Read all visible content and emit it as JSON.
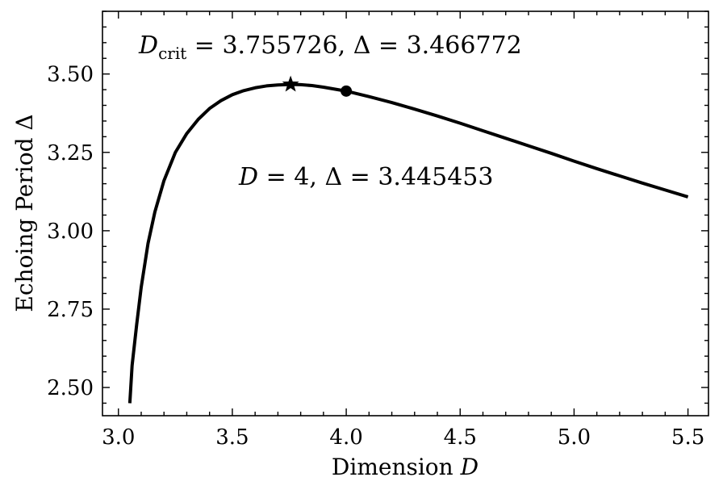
{
  "chart_data": {
    "type": "line",
    "xlabel": {
      "text": "Dimension ",
      "var": "D"
    },
    "ylabel": "Echoing Period Δ",
    "xlim": [
      2.93,
      5.59
    ],
    "ylim": [
      2.41,
      3.7
    ],
    "xticks": [
      3.0,
      3.5,
      4.0,
      4.5,
      5.0,
      5.5
    ],
    "xtick_labels": [
      "3.0",
      "3.5",
      "4.0",
      "4.5",
      "5.0",
      "5.5"
    ],
    "yticks": [
      2.5,
      2.75,
      3.0,
      3.25,
      3.5
    ],
    "ytick_labels": [
      "2.50",
      "2.75",
      "3.00",
      "3.25",
      "3.50"
    ],
    "grid": false,
    "series": [
      {
        "color": "#000000",
        "x": [
          3.05,
          3.06,
          3.08,
          3.1,
          3.13,
          3.16,
          3.2,
          3.25,
          3.3,
          3.35,
          3.4,
          3.45,
          3.5,
          3.55,
          3.6,
          3.65,
          3.7,
          3.7557,
          3.8,
          3.85,
          3.9,
          4.0,
          4.1,
          4.2,
          4.3,
          4.4,
          4.5,
          4.6,
          4.7,
          4.8,
          4.9,
          5.0,
          5.1,
          5.2,
          5.3,
          5.4,
          5.5
        ],
        "y": [
          2.45,
          2.57,
          2.7,
          2.82,
          2.96,
          3.06,
          3.16,
          3.25,
          3.31,
          3.355,
          3.39,
          3.415,
          3.434,
          3.447,
          3.456,
          3.462,
          3.465,
          3.466772,
          3.466,
          3.463,
          3.458,
          3.445453,
          3.428,
          3.409,
          3.388,
          3.366,
          3.343,
          3.319,
          3.295,
          3.271,
          3.247,
          3.222,
          3.198,
          3.175,
          3.152,
          3.13,
          3.108
        ]
      }
    ],
    "markers": [
      {
        "shape": "star",
        "x": 3.755726,
        "y": 3.466772
      },
      {
        "shape": "circle",
        "x": 4.0,
        "y": 3.445453
      }
    ],
    "annotations": {
      "crit": {
        "d": "D",
        "sub": "crit",
        "eq1": " = 3.755726, ",
        "delta": "Δ",
        "eq2": " = 3.466772"
      },
      "four": {
        "d": "D",
        "eq1": " = 4, ",
        "delta": "Δ",
        "eq2": " = 3.445453"
      }
    }
  }
}
